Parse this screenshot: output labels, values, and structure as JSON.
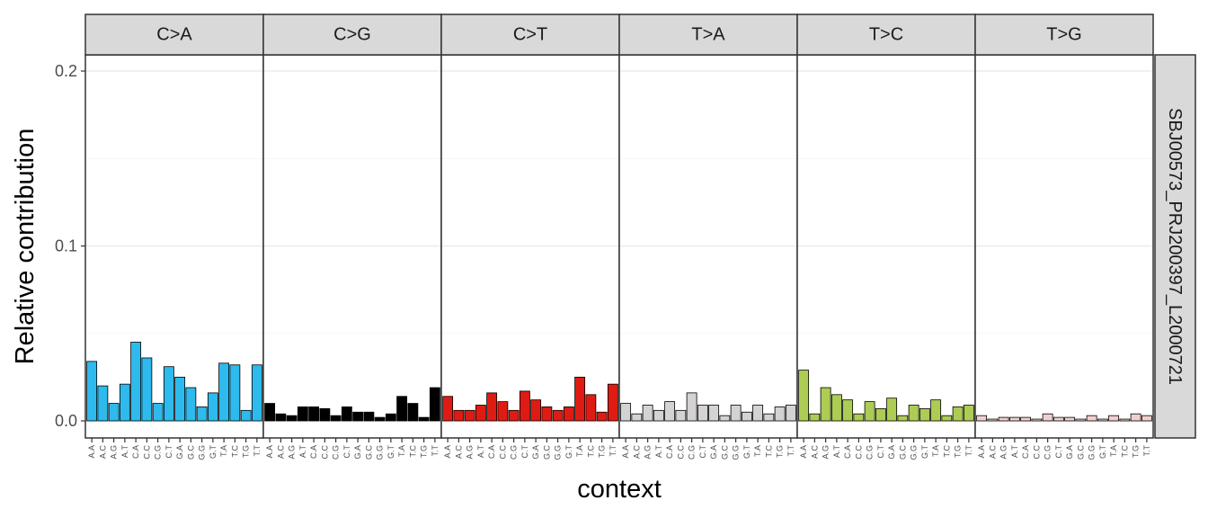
{
  "chart_data": {
    "type": "bar",
    "ylabel": "Relative contribution",
    "xlabel": "context",
    "ylim": [
      -0.01,
      0.21
    ],
    "yticks": [
      0.0,
      0.1,
      0.2
    ],
    "ytick_labels": [
      "0.0",
      "0.1",
      "0.2"
    ],
    "grid": true,
    "sample": "SBJ00573_PRJ200397_L2000721",
    "contexts": [
      "A.A",
      "A.C",
      "A.G",
      "A.T",
      "C.A",
      "C.C",
      "C.G",
      "C.T",
      "G.A",
      "G.C",
      "G.G",
      "G.T",
      "T.A",
      "T.C",
      "T.G",
      "T.T"
    ],
    "panels": [
      {
        "name": "C>A",
        "color": "#2EBAED",
        "values": [
          0.034,
          0.02,
          0.01,
          0.021,
          0.045,
          0.036,
          0.01,
          0.031,
          0.025,
          0.019,
          0.008,
          0.016,
          0.033,
          0.032,
          0.006,
          0.032
        ]
      },
      {
        "name": "C>G",
        "color": "#000000",
        "values": [
          0.01,
          0.004,
          0.003,
          0.008,
          0.008,
          0.007,
          0.003,
          0.008,
          0.005,
          0.005,
          0.002,
          0.004,
          0.014,
          0.01,
          0.002,
          0.019
        ]
      },
      {
        "name": "C>T",
        "color": "#DE1C14",
        "values": [
          0.014,
          0.006,
          0.006,
          0.009,
          0.016,
          0.011,
          0.006,
          0.017,
          0.012,
          0.008,
          0.006,
          0.008,
          0.025,
          0.015,
          0.005,
          0.021
        ]
      },
      {
        "name": "T>A",
        "color": "#D4D2D2",
        "values": [
          0.01,
          0.004,
          0.009,
          0.006,
          0.011,
          0.006,
          0.016,
          0.009,
          0.009,
          0.003,
          0.009,
          0.005,
          0.009,
          0.004,
          0.008,
          0.009
        ]
      },
      {
        "name": "T>C",
        "color": "#ADCC54",
        "values": [
          0.029,
          0.004,
          0.019,
          0.015,
          0.012,
          0.004,
          0.011,
          0.007,
          0.013,
          0.003,
          0.009,
          0.007,
          0.012,
          0.003,
          0.008,
          0.009
        ]
      },
      {
        "name": "T>G",
        "color": "#F0D0CE",
        "values": [
          0.003,
          0.001,
          0.002,
          0.002,
          0.002,
          0.001,
          0.004,
          0.002,
          0.002,
          0.001,
          0.003,
          0.001,
          0.003,
          0.001,
          0.004,
          0.003
        ]
      }
    ]
  }
}
